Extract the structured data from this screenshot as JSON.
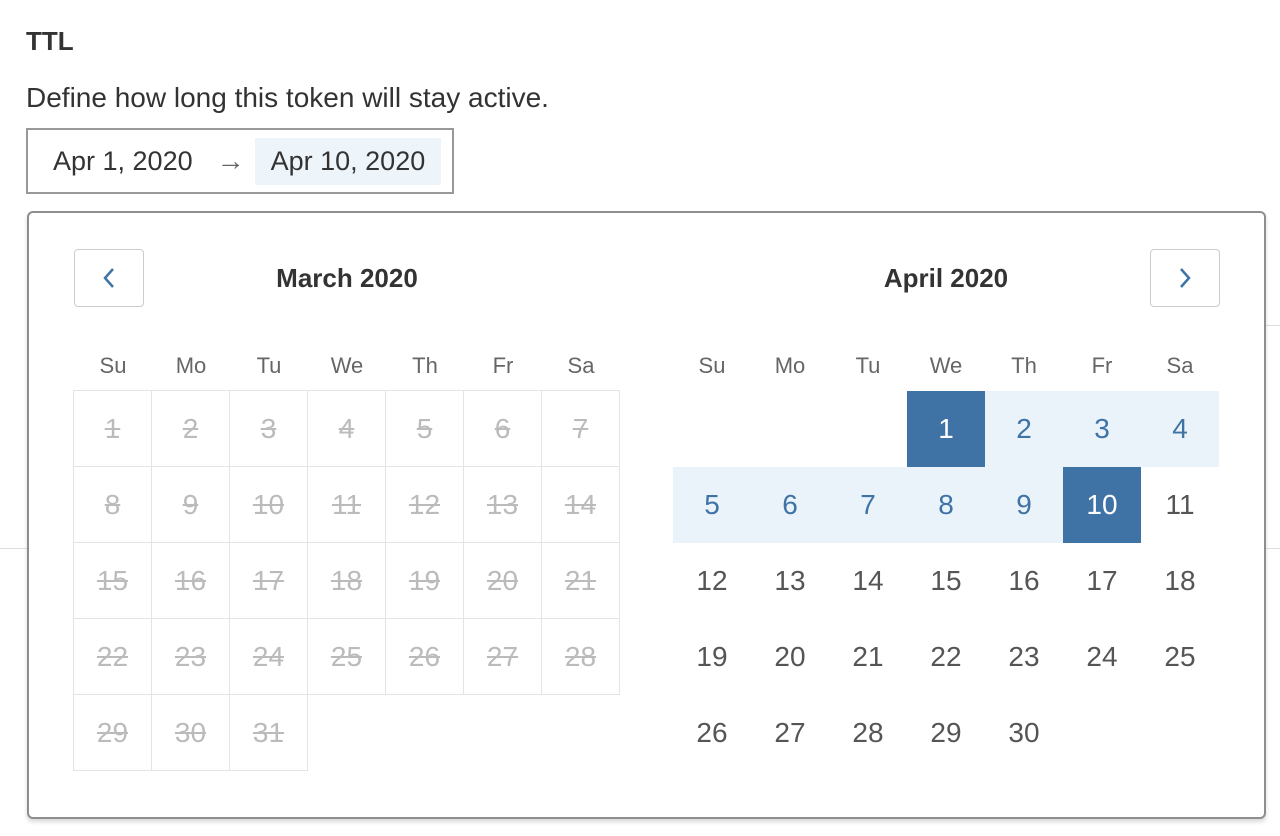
{
  "section": {
    "title": "TTL",
    "description": "Define how long this token will stay active."
  },
  "range_input": {
    "start": "Apr 1, 2020",
    "arrow": "→",
    "end": "Apr 10, 2020"
  },
  "calendar": {
    "prev_icon": "chevron-left-icon",
    "next_icon": "chevron-right-icon",
    "weekdays": [
      "Su",
      "Mo",
      "Tu",
      "We",
      "Th",
      "Fr",
      "Sa"
    ],
    "months": [
      {
        "title": "March 2020",
        "first_weekday": 0,
        "days": 31,
        "disabled": true
      },
      {
        "title": "April 2020",
        "first_weekday": 3,
        "days": 30,
        "disabled": false
      }
    ],
    "range_start": 1,
    "range_end": 10
  },
  "colors": {
    "accent": "#3f73a6",
    "range_bg": "#eaf3fa",
    "disabled": "#bbbbbb"
  }
}
